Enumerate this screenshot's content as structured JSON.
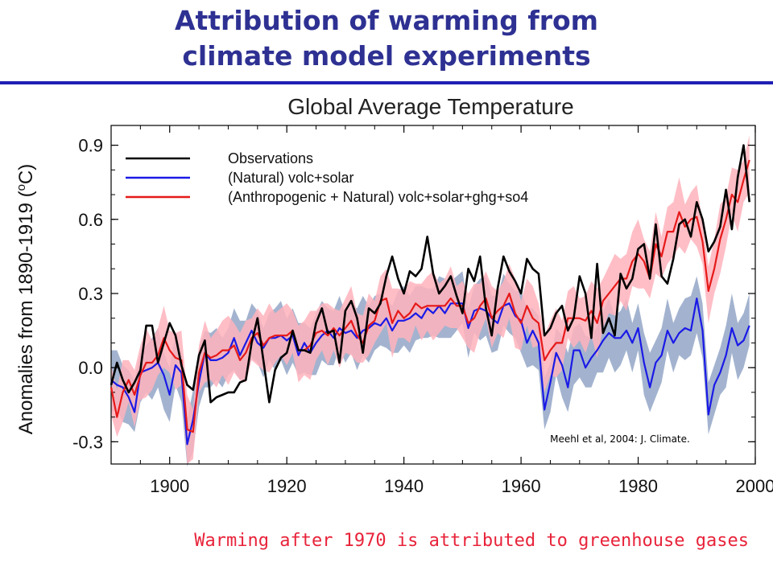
{
  "slide": {
    "title_line1": "Attribution of warming from",
    "title_line2": "climate model experiments",
    "caption": "Warming after 1970 is attributed to greenhouse gases",
    "accent_color": "#2e3192",
    "rule_color": "#1f1fb4",
    "caption_color": "#e8233a"
  },
  "chart_data": {
    "type": "line",
    "title": "Global Average Temperature",
    "ylabel": "Anomalies from 1890-1919 (",
    "ylabel_unit": "o",
    "ylabel_end": "C)",
    "xlabel": "",
    "xlim": [
      1890,
      2000
    ],
    "ylim": [
      -0.39,
      0.98
    ],
    "xticks": [
      1900,
      1920,
      1940,
      1960,
      1980,
      2000
    ],
    "yticks": [
      -0.3,
      0.0,
      0.3,
      0.6,
      0.9
    ],
    "ytick_labels": [
      "-0.3",
      "0.0",
      "0.3",
      "0.6",
      "0.9"
    ],
    "grid": false,
    "legend_position": "top-left",
    "annotation": "Meehl et al, 2004: J. Climate.",
    "x": [
      1890,
      1891,
      1892,
      1893,
      1894,
      1895,
      1896,
      1897,
      1898,
      1899,
      1900,
      1901,
      1902,
      1903,
      1904,
      1905,
      1906,
      1907,
      1908,
      1909,
      1910,
      1911,
      1912,
      1913,
      1914,
      1915,
      1916,
      1917,
      1918,
      1919,
      1920,
      1921,
      1922,
      1923,
      1924,
      1925,
      1926,
      1927,
      1928,
      1929,
      1930,
      1931,
      1932,
      1933,
      1934,
      1935,
      1936,
      1937,
      1938,
      1939,
      1940,
      1941,
      1942,
      1943,
      1944,
      1945,
      1946,
      1947,
      1948,
      1949,
      1950,
      1951,
      1952,
      1953,
      1954,
      1955,
      1956,
      1957,
      1958,
      1959,
      1960,
      1961,
      1962,
      1963,
      1964,
      1965,
      1966,
      1967,
      1968,
      1969,
      1970,
      1971,
      1972,
      1973,
      1974,
      1975,
      1976,
      1977,
      1978,
      1979,
      1980,
      1981,
      1982,
      1983,
      1984,
      1985,
      1986,
      1987,
      1988,
      1989,
      1990,
      1991,
      1992,
      1993,
      1994,
      1995,
      1996,
      1997,
      1998,
      1999
    ],
    "series": [
      {
        "name": "Observations",
        "color": "#000000",
        "values": [
          -0.07,
          0.02,
          -0.05,
          -0.1,
          -0.06,
          -0.01,
          0.17,
          0.17,
          0.02,
          0.1,
          0.18,
          0.13,
          0.01,
          -0.07,
          -0.09,
          0.05,
          0.11,
          -0.14,
          -0.12,
          -0.11,
          -0.1,
          -0.1,
          -0.06,
          -0.05,
          0.1,
          0.2,
          0.03,
          -0.14,
          -0.01,
          0.04,
          0.06,
          0.15,
          0.07,
          0.07,
          0.06,
          0.18,
          0.24,
          0.14,
          0.15,
          0.02,
          0.23,
          0.27,
          0.2,
          0.06,
          0.24,
          0.22,
          0.26,
          0.37,
          0.45,
          0.36,
          0.3,
          0.39,
          0.37,
          0.4,
          0.53,
          0.38,
          0.3,
          0.33,
          0.37,
          0.29,
          0.22,
          0.4,
          0.35,
          0.45,
          0.24,
          0.13,
          0.32,
          0.45,
          0.39,
          0.35,
          0.3,
          0.44,
          0.4,
          0.38,
          0.13,
          0.16,
          0.22,
          0.25,
          0.15,
          0.2,
          0.37,
          0.3,
          0.12,
          0.42,
          0.14,
          0.2,
          0.13,
          0.38,
          0.32,
          0.36,
          0.48,
          0.5,
          0.36,
          0.58,
          0.37,
          0.34,
          0.44,
          0.58,
          0.6,
          0.53,
          0.67,
          0.6,
          0.47,
          0.51,
          0.57,
          0.72,
          0.56,
          0.77,
          0.9,
          0.67
        ]
      },
      {
        "name": "(Natural) volc+solar",
        "color": "#1a1ae6",
        "band_color": "#a3b3cf",
        "values": [
          -0.05,
          -0.07,
          -0.08,
          -0.12,
          -0.18,
          -0.02,
          -0.01,
          0.0,
          0.02,
          -0.03,
          -0.11,
          0.01,
          -0.02,
          -0.31,
          -0.21,
          -0.06,
          0.06,
          0.03,
          0.03,
          0.04,
          0.06,
          0.12,
          0.05,
          0.1,
          0.15,
          0.1,
          0.08,
          0.12,
          0.12,
          0.13,
          0.11,
          0.13,
          0.05,
          0.1,
          0.06,
          0.1,
          0.13,
          0.15,
          0.12,
          0.16,
          0.14,
          0.15,
          0.12,
          0.15,
          0.16,
          0.18,
          0.17,
          0.2,
          0.15,
          0.19,
          0.19,
          0.2,
          0.22,
          0.2,
          0.24,
          0.22,
          0.25,
          0.22,
          0.26,
          0.26,
          0.26,
          0.16,
          0.23,
          0.24,
          0.23,
          0.2,
          0.18,
          0.25,
          0.26,
          0.21,
          0.19,
          0.1,
          0.15,
          0.1,
          -0.17,
          -0.06,
          0.06,
          0.01,
          -0.08,
          0.07,
          0.07,
          0.0,
          0.04,
          0.07,
          0.11,
          0.14,
          0.12,
          0.12,
          0.15,
          0.1,
          0.16,
          0.02,
          -0.08,
          0.02,
          0.05,
          0.15,
          0.1,
          0.14,
          0.16,
          0.15,
          0.28,
          0.15,
          -0.19,
          -0.07,
          -0.02,
          0.05,
          0.16,
          0.09,
          0.11,
          0.17
        ]
      },
      {
        "name": "(Anthropogenic + Natural) volc+solar+ghg+so4",
        "color": "#e61919",
        "band_color": "#ffb3bc",
        "values": [
          -0.08,
          -0.2,
          -0.1,
          -0.05,
          -0.11,
          -0.03,
          0.02,
          0.02,
          0.05,
          0.12,
          0.07,
          0.04,
          0.03,
          -0.25,
          -0.26,
          -0.02,
          0.06,
          0.04,
          0.05,
          0.07,
          0.07,
          0.09,
          0.03,
          0.06,
          0.12,
          0.14,
          0.09,
          0.12,
          0.13,
          0.13,
          0.13,
          0.15,
          0.07,
          0.07,
          0.09,
          0.14,
          0.15,
          0.13,
          0.16,
          0.13,
          0.16,
          0.19,
          0.13,
          0.1,
          0.17,
          0.19,
          0.27,
          0.28,
          0.18,
          0.23,
          0.2,
          0.22,
          0.26,
          0.24,
          0.25,
          0.25,
          0.25,
          0.25,
          0.28,
          0.25,
          0.25,
          0.18,
          0.2,
          0.25,
          0.28,
          0.2,
          0.23,
          0.25,
          0.3,
          0.22,
          0.18,
          0.25,
          0.2,
          0.18,
          0.03,
          0.07,
          0.1,
          0.1,
          0.2,
          0.2,
          0.2,
          0.19,
          0.23,
          0.18,
          0.27,
          0.3,
          0.33,
          0.36,
          0.36,
          0.43,
          0.46,
          0.43,
          0.36,
          0.5,
          0.45,
          0.55,
          0.55,
          0.63,
          0.57,
          0.6,
          0.61,
          0.51,
          0.31,
          0.4,
          0.52,
          0.6,
          0.7,
          0.67,
          0.76,
          0.84
        ]
      }
    ],
    "band_halfwidth": 0.08
  }
}
